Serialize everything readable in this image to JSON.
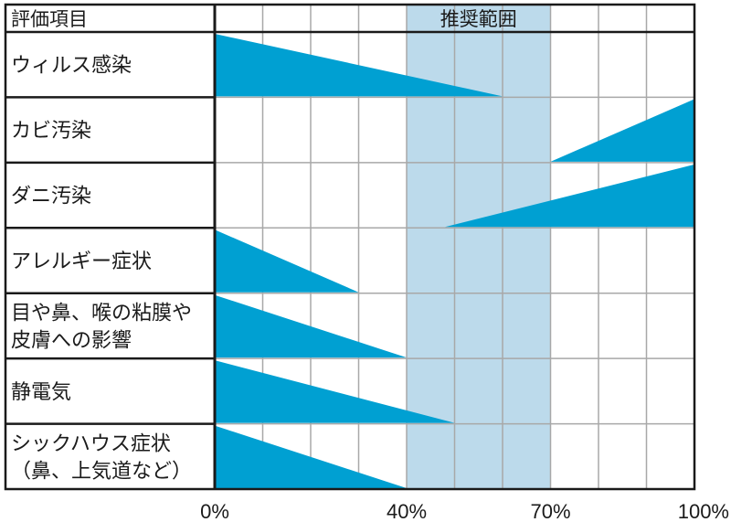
{
  "chart_data": {
    "type": "bar",
    "header_label": "評価項目",
    "recommended_label": "推奨範囲",
    "recommended_range": [
      40,
      70
    ],
    "x_ticks": [
      "0%",
      "40%",
      "70%",
      "100%"
    ],
    "x_tick_values": [
      0,
      40,
      70,
      100
    ],
    "xlim": [
      0,
      100
    ],
    "grid_step": 10,
    "categories": [
      [
        "ウィルス感染"
      ],
      [
        "カビ汚染"
      ],
      [
        "ダニ汚染"
      ],
      [
        "アレルギー症状"
      ],
      [
        "目や鼻、喉の粘膜や",
        "皮膚への影響"
      ],
      [
        "静電気"
      ],
      [
        "シックハウス症状",
        "（鼻、上気道など）"
      ]
    ],
    "bands": [
      {
        "direction": "decreasing",
        "start": 0,
        "end": 60
      },
      {
        "direction": "increasing",
        "start": 70,
        "end": 100
      },
      {
        "direction": "increasing",
        "start": 48,
        "end": 100
      },
      {
        "direction": "decreasing",
        "start": 0,
        "end": 30
      },
      {
        "direction": "decreasing",
        "start": 0,
        "end": 40
      },
      {
        "direction": "decreasing",
        "start": 0,
        "end": 50
      },
      {
        "direction": "decreasing",
        "start": 0,
        "end": 40
      }
    ],
    "colors": {
      "band": "#00a0d2",
      "recommended": "#bcdaeb",
      "grid": "#a8a8a8",
      "frame": "#1a1a1a"
    }
  }
}
